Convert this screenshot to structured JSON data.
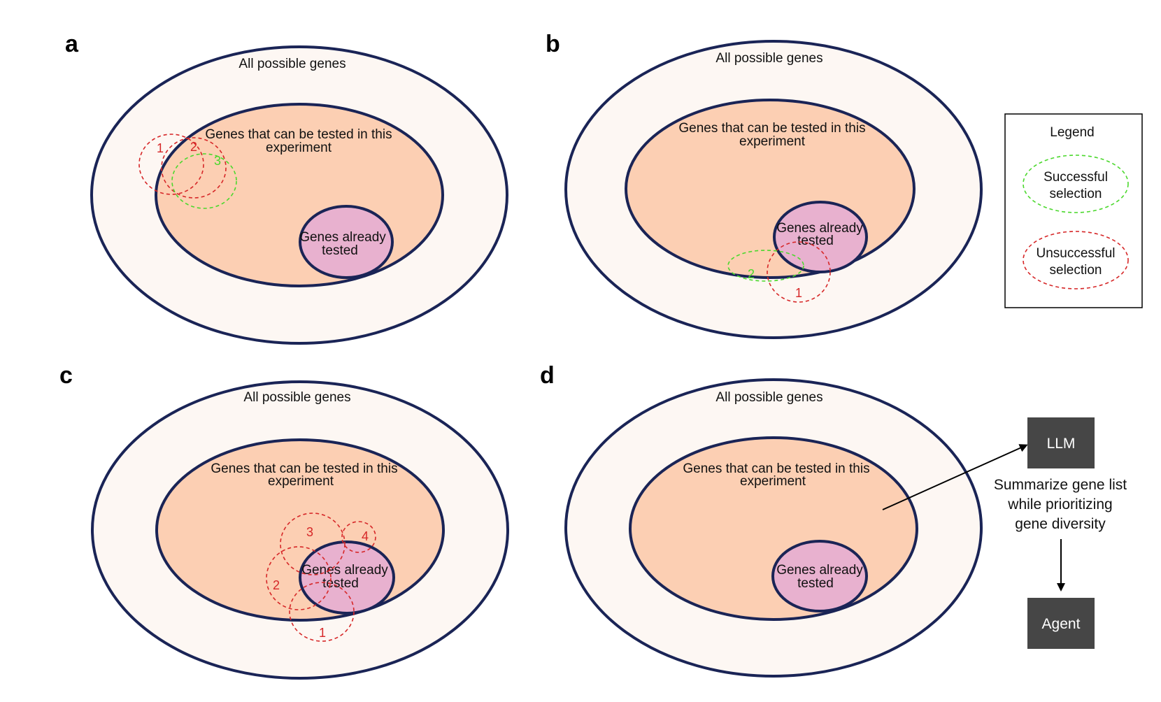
{
  "colors": {
    "outline": "#1a2456",
    "outer_fill": "#fdf7f3",
    "middle_fill": "#fccfb3",
    "inner_fill": "#e8b1cf",
    "successful": "#4bd82d",
    "unsuccessful": "#d62728",
    "box_fill": "#464646"
  },
  "labels": {
    "all_possible_genes": "All possible genes",
    "testable_line1": "Genes that can be tested in this",
    "testable_line2": "experiment",
    "tested_line1": "Genes already",
    "tested_line2": "tested"
  },
  "panels": {
    "a": {
      "letter": "a",
      "selections": [
        "1",
        "2",
        "3"
      ]
    },
    "b": {
      "letter": "b",
      "selections": [
        "1",
        "2"
      ]
    },
    "c": {
      "letter": "c",
      "selections": [
        "1",
        "2",
        "3",
        "4"
      ]
    },
    "d": {
      "letter": "d"
    }
  },
  "legend": {
    "title": "Legend",
    "successful_line1": "Successful",
    "successful_line2": "selection",
    "unsuccessful_line1": "Unsuccessful",
    "unsuccessful_line2": "selection"
  },
  "pipeline": {
    "llm": "LLM",
    "caption_line1": "Summarize gene list",
    "caption_line2": "while prioritizing",
    "caption_line3": "gene diversity",
    "agent": "Agent"
  }
}
